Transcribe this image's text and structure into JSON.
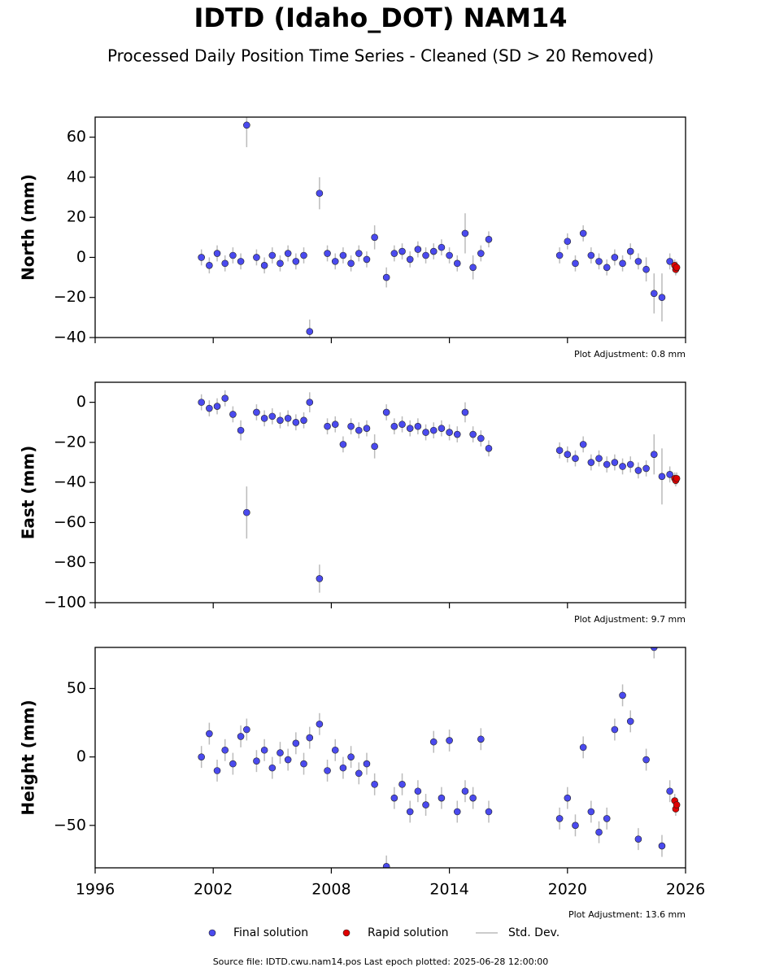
{
  "title": "IDTD (Idaho_DOT) NAM14",
  "subtitle": "Processed Daily Position Time Series - Cleaned (SD > 20 Removed)",
  "error_legend": "Std. Dev.",
  "source": "Source file: IDTD.cwu.nam14.pos  Last epoch plotted: 2025-06-28 12:00:00",
  "chart_data": [
    {
      "type": "scatter",
      "ylabel": "North (mm)",
      "annotation": "Plot Adjustment: 0.8 mm",
      "xlim": [
        1996,
        2026
      ],
      "xticks": [
        1996,
        2002,
        2008,
        2014,
        2020,
        2026
      ],
      "ylim": [
        -40,
        70
      ],
      "yticks": [
        {
          "value": -40,
          "label": "−40"
        },
        {
          "value": -20,
          "label": "−20"
        },
        0,
        20,
        40,
        60
      ],
      "series": [
        {
          "name": "Final solution",
          "color": "#4a4aee",
          "x": [
            2001.4,
            2001.8,
            2002.2,
            2002.6,
            2003.0,
            2003.4,
            2003.7,
            2004.2,
            2004.6,
            2005.0,
            2005.4,
            2005.8,
            2006.2,
            2006.6,
            2006.9,
            2007.4,
            2007.8,
            2008.2,
            2008.6,
            2009.0,
            2009.4,
            2009.8,
            2010.2,
            2010.8,
            2011.2,
            2011.6,
            2012.0,
            2012.4,
            2012.8,
            2013.2,
            2013.6,
            2014.0,
            2014.4,
            2014.8,
            2015.2,
            2015.6,
            2016.0,
            2019.6,
            2020.0,
            2020.4,
            2020.8,
            2021.2,
            2021.6,
            2022.0,
            2022.4,
            2022.8,
            2023.2,
            2023.6,
            2024.0,
            2024.4,
            2024.8,
            2025.2
          ],
          "values": [
            0,
            -4,
            2,
            -3,
            1,
            -2,
            66,
            0,
            -4,
            1,
            -3,
            2,
            -2,
            1,
            -37,
            32,
            2,
            -2,
            1,
            -3,
            2,
            -1,
            10,
            -10,
            2,
            3,
            -1,
            4,
            1,
            3,
            5,
            1,
            -3,
            12,
            -5,
            2,
            9,
            1,
            8,
            -3,
            12,
            1,
            -2,
            -5,
            0,
            -3,
            3,
            -2,
            -6,
            -18,
            -20,
            -2
          ],
          "errors": [
            4,
            4,
            4,
            4,
            4,
            4,
            11,
            4,
            4,
            4,
            4,
            4,
            4,
            4,
            6,
            8,
            4,
            4,
            4,
            4,
            4,
            4,
            6,
            5,
            4,
            4,
            4,
            4,
            4,
            4,
            4,
            4,
            4,
            10,
            6,
            4,
            4,
            4,
            4,
            4,
            4,
            4,
            4,
            4,
            4,
            4,
            4,
            4,
            6,
            10,
            12,
            4
          ]
        },
        {
          "name": "Rapid solution",
          "color": "#e00000",
          "x": [
            2025.45,
            2025.5,
            2025.55
          ],
          "values": [
            -4,
            -6,
            -5
          ],
          "errors": [
            3,
            3,
            3
          ]
        }
      ]
    },
    {
      "type": "scatter",
      "ylabel": "East (mm)",
      "annotation": "Plot Adjustment: 9.7 mm",
      "xlim": [
        1996,
        2026
      ],
      "xticks": [
        1996,
        2002,
        2008,
        2014,
        2020,
        2026
      ],
      "ylim": [
        -100,
        10
      ],
      "yticks": [
        {
          "value": -100,
          "label": "−100"
        },
        {
          "value": -80,
          "label": "−80"
        },
        {
          "value": -60,
          "label": "−60"
        },
        {
          "value": -40,
          "label": "−40"
        },
        {
          "value": -20,
          "label": "−20"
        },
        0
      ],
      "series": [
        {
          "name": "Final solution",
          "color": "#4a4aee",
          "x": [
            2001.4,
            2001.8,
            2002.2,
            2002.6,
            2003.0,
            2003.4,
            2003.7,
            2004.2,
            2004.6,
            2005.0,
            2005.4,
            2005.8,
            2006.2,
            2006.6,
            2006.9,
            2007.4,
            2007.8,
            2008.2,
            2008.6,
            2009.0,
            2009.4,
            2009.8,
            2010.2,
            2010.8,
            2011.2,
            2011.6,
            2012.0,
            2012.4,
            2012.8,
            2013.2,
            2013.6,
            2014.0,
            2014.4,
            2014.8,
            2015.2,
            2015.6,
            2016.0,
            2019.6,
            2020.0,
            2020.4,
            2020.8,
            2021.2,
            2021.6,
            2022.0,
            2022.4,
            2022.8,
            2023.2,
            2023.6,
            2024.0,
            2024.4,
            2024.8,
            2025.2
          ],
          "values": [
            0,
            -3,
            -2,
            2,
            -6,
            -14,
            -55,
            -5,
            -8,
            -7,
            -9,
            -8,
            -10,
            -9,
            0,
            -88,
            -12,
            -11,
            -21,
            -12,
            -14,
            -13,
            -22,
            -5,
            -12,
            -11,
            -13,
            -12,
            -15,
            -14,
            -13,
            -15,
            -16,
            -5,
            -16,
            -18,
            -23,
            -24,
            -26,
            -28,
            -21,
            -30,
            -28,
            -31,
            -30,
            -32,
            -31,
            -34,
            -33,
            -26,
            -37,
            -36
          ],
          "errors": [
            4,
            4,
            4,
            4,
            4,
            5,
            13,
            4,
            4,
            4,
            4,
            4,
            4,
            4,
            5,
            7,
            4,
            4,
            4,
            4,
            4,
            4,
            6,
            4,
            4,
            4,
            4,
            4,
            4,
            4,
            4,
            4,
            4,
            5,
            4,
            4,
            4,
            4,
            4,
            4,
            4,
            4,
            4,
            4,
            4,
            4,
            4,
            4,
            4,
            10,
            14,
            4
          ]
        },
        {
          "name": "Rapid solution",
          "color": "#e00000",
          "x": [
            2025.45,
            2025.5,
            2025.55
          ],
          "values": [
            -38,
            -39,
            -38
          ],
          "errors": [
            3,
            3,
            3
          ]
        }
      ]
    },
    {
      "type": "scatter",
      "ylabel": "Height (mm)",
      "annotation": "Plot Adjustment: 13.6 mm",
      "xlim": [
        1996,
        2026
      ],
      "xticks": [
        1996,
        2002,
        2008,
        2014,
        2020,
        2026
      ],
      "ylim": [
        -81,
        80
      ],
      "yticks": [
        {
          "value": -50,
          "label": "−50"
        },
        0,
        50
      ],
      "series": [
        {
          "name": "Final solution",
          "color": "#4a4aee",
          "x": [
            2001.4,
            2001.8,
            2002.2,
            2002.6,
            2003.0,
            2003.4,
            2003.7,
            2004.2,
            2004.6,
            2005.0,
            2005.4,
            2005.8,
            2006.2,
            2006.6,
            2006.9,
            2007.4,
            2007.8,
            2008.2,
            2008.6,
            2009.0,
            2009.4,
            2009.8,
            2010.2,
            2010.8,
            2011.2,
            2011.6,
            2012.0,
            2012.4,
            2012.8,
            2013.2,
            2013.6,
            2014.0,
            2014.4,
            2014.8,
            2015.2,
            2015.6,
            2016.0,
            2019.6,
            2020.0,
            2020.4,
            2020.8,
            2021.2,
            2021.6,
            2022.0,
            2022.4,
            2022.8,
            2023.2,
            2023.6,
            2024.0,
            2024.4,
            2024.8,
            2025.2
          ],
          "values": [
            0,
            17,
            -10,
            5,
            -5,
            15,
            20,
            -3,
            5,
            -8,
            3,
            -2,
            10,
            -5,
            14,
            24,
            -10,
            5,
            -8,
            0,
            -12,
            -5,
            -20,
            -80,
            -30,
            -20,
            -40,
            -25,
            -35,
            11,
            -30,
            12,
            -40,
            -25,
            -30,
            13,
            -40,
            -45,
            -30,
            -50,
            7,
            -40,
            -55,
            -45,
            20,
            45,
            26,
            -60,
            -2,
            80,
            -65,
            -25
          ],
          "errors": [
            8,
            8,
            8,
            8,
            8,
            8,
            8,
            8,
            8,
            8,
            8,
            8,
            8,
            8,
            8,
            8,
            8,
            8,
            8,
            8,
            8,
            8,
            8,
            8,
            8,
            8,
            8,
            8,
            8,
            8,
            8,
            8,
            8,
            8,
            8,
            8,
            8,
            8,
            8,
            8,
            8,
            8,
            8,
            8,
            8,
            8,
            8,
            8,
            8,
            8,
            8,
            8
          ]
        },
        {
          "name": "Rapid solution",
          "color": "#e00000",
          "x": [
            2025.45,
            2025.5,
            2025.55
          ],
          "values": [
            -32,
            -38,
            -35
          ],
          "errors": [
            5,
            5,
            5
          ]
        }
      ]
    }
  ]
}
